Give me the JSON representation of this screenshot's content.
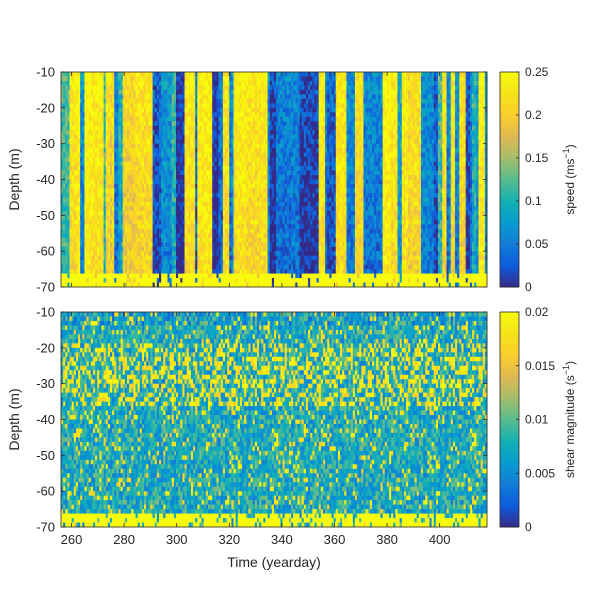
{
  "chart_data": [
    {
      "type": "heatmap",
      "panel": "top",
      "ylabel": "Depth (m)",
      "xlabel": "",
      "xlim": [
        256,
        418
      ],
      "ylim": [
        -70,
        -10
      ],
      "x_ticks": [
        260,
        280,
        300,
        320,
        340,
        360,
        380,
        400
      ],
      "x_tick_labels_visible": false,
      "y_ticks": [
        -10,
        -20,
        -30,
        -40,
        -50,
        -60,
        -70
      ],
      "y_tick_labels": [
        "-10",
        "-20",
        "-30",
        "-40",
        "-50",
        "-60",
        "-70"
      ],
      "colorbar": {
        "label_prefix": "speed (ms",
        "label_exp": "−1",
        "label_suffix": ")",
        "range": [
          0,
          0.25
        ],
        "ticks": [
          0,
          0.05,
          0.1,
          0.15,
          0.2,
          0.25
        ],
        "tick_labels": [
          "0",
          "0.05",
          "0.1",
          "0.15",
          "0.2",
          "0.25"
        ]
      },
      "colormap": "parula",
      "pattern": "vertical bands of speed alternating high and low over time; values near bottom (-65 to -70 m) saturate high",
      "grid": false
    },
    {
      "type": "heatmap",
      "panel": "bottom",
      "ylabel": "Depth (m)",
      "xlabel": "Time (yearday)",
      "xlim": [
        256,
        418
      ],
      "ylim": [
        -70,
        -10
      ],
      "x_ticks": [
        260,
        280,
        300,
        320,
        340,
        360,
        380,
        400
      ],
      "x_tick_labels": [
        "260",
        "280",
        "300",
        "320",
        "340",
        "360",
        "380",
        "400"
      ],
      "y_ticks": [
        -10,
        -20,
        -30,
        -40,
        -50,
        -60,
        -70
      ],
      "y_tick_labels": [
        "-10",
        "-20",
        "-30",
        "-40",
        "-50",
        "-60",
        "-70"
      ],
      "colorbar": {
        "label_prefix": "shear magnitude (s",
        "label_exp": "−1",
        "label_suffix": ")",
        "range": [
          0,
          0.02
        ],
        "ticks": [
          0,
          0.005,
          0.01,
          0.015,
          0.02
        ],
        "tick_labels": [
          "0",
          "0.005",
          "0.01",
          "0.015",
          "0.02"
        ]
      },
      "colormap": "parula",
      "pattern": "mostly low shear with patches of high shear between -20 and -35 m and a saturated high-shear layer below -65 m",
      "grid": false
    }
  ]
}
